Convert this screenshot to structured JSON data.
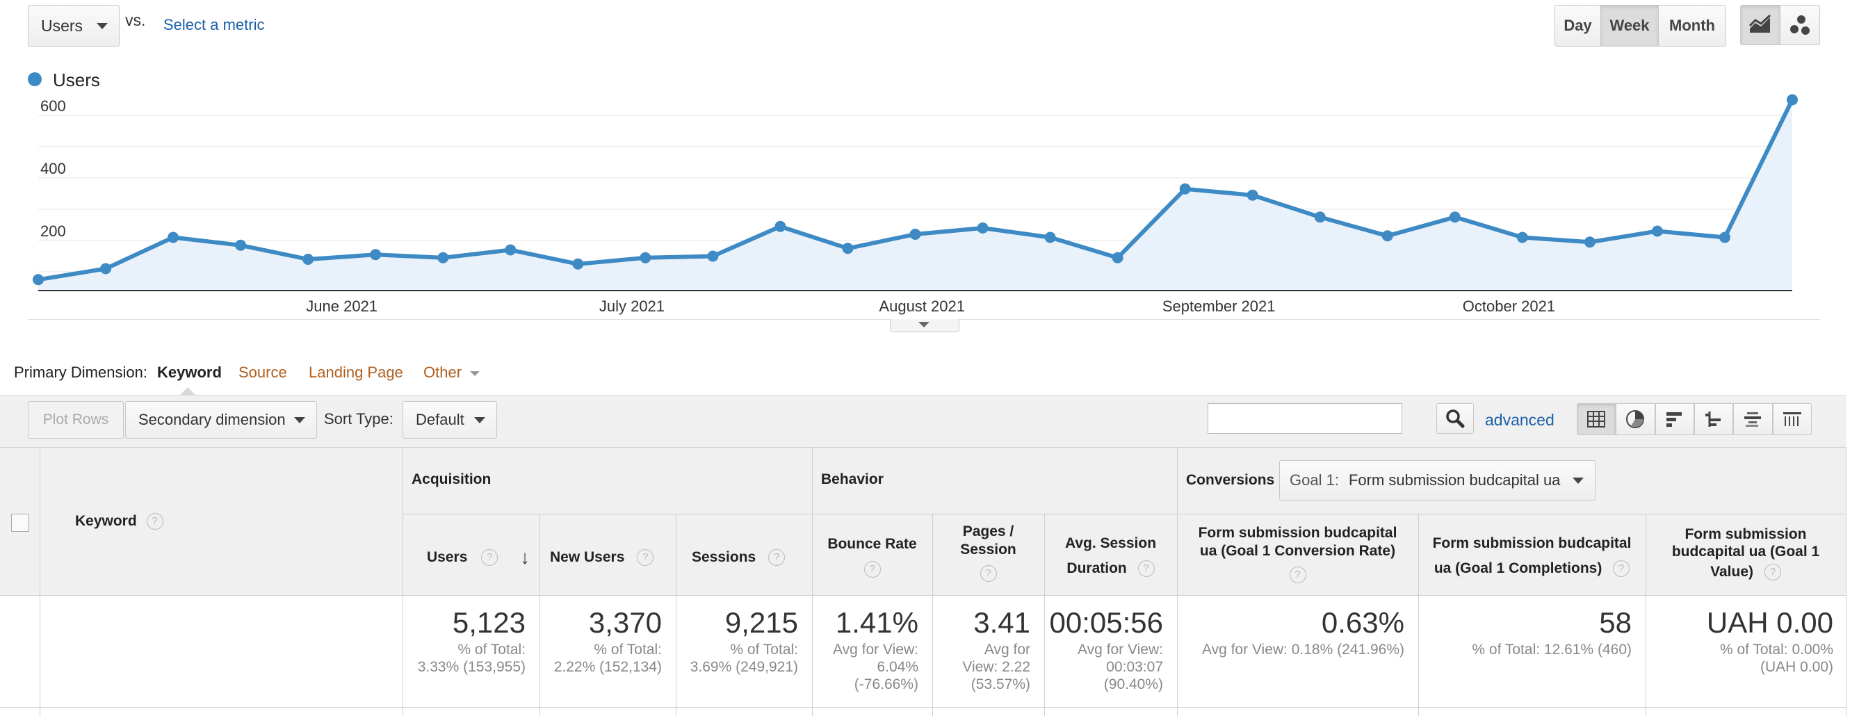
{
  "top": {
    "metric_select": "Users",
    "vs_label": "vs.",
    "select_metric_link": "Select a metric",
    "time_buttons": [
      "Day",
      "Week",
      "Month"
    ],
    "active_time": "Week"
  },
  "legend": {
    "series_name": "Users",
    "color": "#3d8ac4"
  },
  "chart_data": {
    "type": "area",
    "series": [
      {
        "name": "Users",
        "values": [
          75,
          110,
          210,
          185,
          140,
          155,
          145,
          170,
          125,
          145,
          150,
          245,
          175,
          220,
          240,
          210,
          145,
          365,
          345,
          275,
          215,
          275,
          210,
          195,
          230,
          210,
          650
        ]
      }
    ],
    "x_labels": [
      "June 2021",
      "July 2021",
      "August 2021",
      "September 2021",
      "October 2021"
    ],
    "y_ticks": [
      "200",
      "400",
      "600"
    ],
    "ylim": [
      0,
      650
    ],
    "grid": true
  },
  "dimension_bar": {
    "label": "Primary Dimension:",
    "active": "Keyword",
    "options": [
      "Source",
      "Landing Page",
      "Other"
    ]
  },
  "toolbar": {
    "plot_rows": "Plot Rows",
    "secondary_dimension": "Secondary dimension",
    "sort_type_label": "Sort Type:",
    "sort_type_value": "Default",
    "advanced_link": "advanced"
  },
  "table": {
    "keyword_header": "Keyword",
    "groups": {
      "acquisition": "Acquisition",
      "behavior": "Behavior",
      "conversions": "Conversions"
    },
    "goal_select": {
      "prefix": "Goal 1:",
      "value": "Form submission budcapital ua"
    },
    "columns": {
      "users": "Users",
      "new_users": "New Users",
      "sessions": "Sessions",
      "bounce_rate": "Bounce Rate",
      "pages_session_1": "Pages /",
      "pages_session_2": "Session",
      "avg_duration_1": "Avg. Session",
      "avg_duration_2": "Duration",
      "conv_rate_1": "Form submission  budcapital",
      "conv_rate_2": "ua (Goal 1 Conversion Rate)",
      "completions_1": "Form submission  budcapital",
      "completions_2": "ua (Goal 1 Completions)",
      "value_1": "Form submission",
      "value_2": "budcapital ua (Goal 1",
      "value_3": "Value)"
    },
    "totals": {
      "users": {
        "value": "5,123",
        "l1": "% of Total:",
        "l2": "3.33% (153,955)"
      },
      "new_users": {
        "value": "3,370",
        "l1": "% of Total:",
        "l2": "2.22% (152,134)"
      },
      "sessions": {
        "value": "9,215",
        "l1": "% of Total:",
        "l2": "3.69% (249,921)"
      },
      "bounce_rate": {
        "value": "1.41%",
        "l1": "Avg for View:",
        "l2": "6.04%",
        "l3": "(-76.66%)"
      },
      "pages_session": {
        "value": "3.41",
        "l1": "Avg for",
        "l2": "View: 2.22",
        "l3": "(53.57%)"
      },
      "avg_duration": {
        "value": "00:05:56",
        "l1": "Avg for View:",
        "l2": "00:03:07",
        "l3": "(90.40%)"
      },
      "conv_rate": {
        "value": "0.63%",
        "l1": "Avg for View: 0.18% (241.96%)"
      },
      "completions": {
        "value": "58",
        "l1": "% of Total: 12.61% (460)"
      },
      "goal_value": {
        "value": "UAH 0.00",
        "l1": "% of Total: 0.00%",
        "l2": "(UAH 0.00)"
      }
    }
  }
}
